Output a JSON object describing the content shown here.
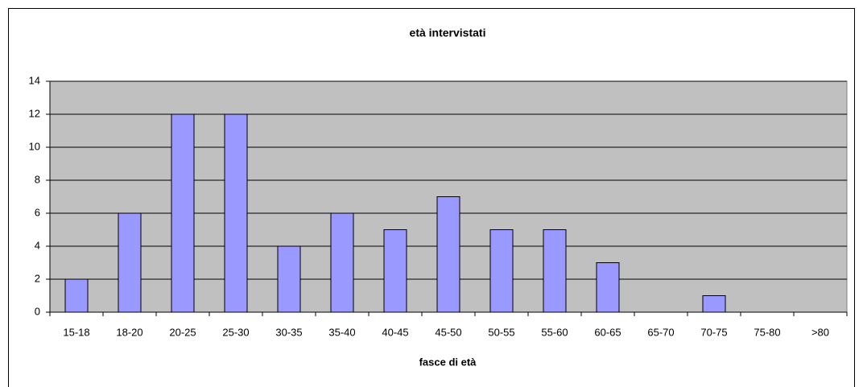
{
  "chart_data": {
    "type": "bar",
    "title": "età intervistati",
    "x_label": "fasce di età",
    "categories": [
      "15-18",
      "18-20",
      "20-25",
      "25-30",
      "30-35",
      "35-40",
      "40-45",
      "45-50",
      "50-55",
      "55-60",
      "60-65",
      "65-70",
      "70-75",
      "75-80",
      ">80"
    ],
    "values": [
      2,
      6,
      12,
      12,
      4,
      6,
      5,
      7,
      5,
      5,
      3,
      0,
      1,
      0,
      0
    ],
    "color": "#9999ff",
    "ylim": [
      0,
      14
    ],
    "yticks": [
      0,
      2,
      4,
      6,
      8,
      10,
      12,
      14
    ],
    "grid": true
  }
}
